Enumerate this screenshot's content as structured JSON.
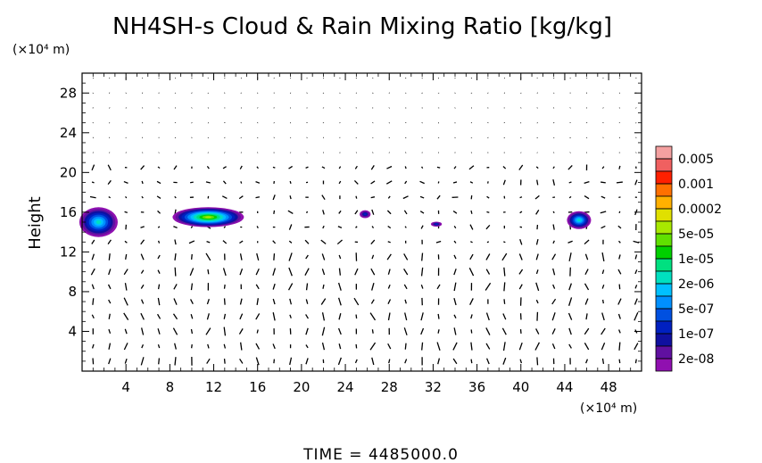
{
  "chart_data": {
    "type": "heatmap",
    "title": "NH4SH-s Cloud & Rain Mixing Ratio [kg/kg]",
    "ylabel": "Height",
    "x_unit": "(×10⁴ m)",
    "y_unit": "(×10⁴ m)",
    "x_ticks": [
      4,
      8,
      12,
      16,
      20,
      24,
      28,
      32,
      36,
      40,
      44,
      48
    ],
    "y_ticks": [
      4,
      8,
      12,
      16,
      20,
      24,
      28
    ],
    "xlim": [
      0,
      51
    ],
    "ylim": [
      0,
      30
    ],
    "colorbar": {
      "labels": [
        "0.005",
        "0.001",
        "0.0002",
        "5e-05",
        "1e-05",
        "2e-06",
        "5e-07",
        "1e-07",
        "2e-08"
      ],
      "colors": [
        "#f4a0a0",
        "#f06060",
        "#ff2000",
        "#ff7000",
        "#ffb000",
        "#e0e000",
        "#a8e800",
        "#60e000",
        "#00d000",
        "#00e080",
        "#00e0c0",
        "#00c0ff",
        "#0090ff",
        "#0050e0",
        "#0020c0",
        "#1010a0",
        "#6010a0",
        "#9010b0"
      ]
    },
    "clouds": [
      {
        "x": 1.5,
        "y": 15.0,
        "w": 3.5,
        "h": 3.0,
        "peak": "1e-05"
      },
      {
        "x": 11.5,
        "y": 15.5,
        "w": 6.5,
        "h": 2.0,
        "peak": "0.0002"
      },
      {
        "x": 25.8,
        "y": 15.8,
        "w": 1.0,
        "h": 0.8,
        "peak": "5e-07"
      },
      {
        "x": 32.3,
        "y": 14.8,
        "w": 1.0,
        "h": 0.5,
        "peak": "5e-07"
      },
      {
        "x": 45.3,
        "y": 15.2,
        "w": 2.2,
        "h": 1.8,
        "peak": "1e-05"
      }
    ]
  },
  "footer": {
    "time_label": "TIME  =  4485000.0"
  }
}
